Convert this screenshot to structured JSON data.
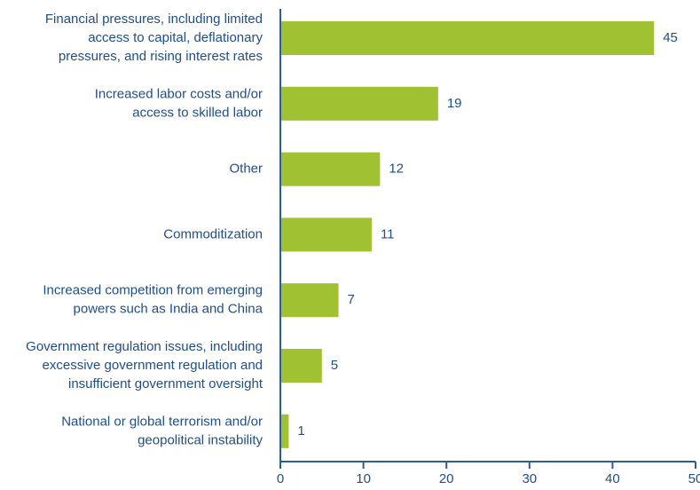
{
  "chart_data": {
    "type": "bar",
    "orientation": "horizontal",
    "categories": [
      "Financial pressures, including limited\naccess to capital, deflationary\npressures, and rising interest rates",
      "Increased labor costs and/or\naccess to skilled labor",
      "Other",
      "Commoditization",
      "Increased competition from emerging\npowers such as India and China",
      "Government regulation issues, including\nexcessive government regulation and\ninsufficient government oversight",
      "National or global terrorism and/or\ngeopolitical instability"
    ],
    "values": [
      45,
      19,
      12,
      11,
      7,
      5,
      1
    ],
    "color": "#a0c131",
    "xlim": [
      0,
      50
    ],
    "xticks": [
      0,
      10,
      20,
      30,
      40,
      50
    ],
    "grid": false
  }
}
